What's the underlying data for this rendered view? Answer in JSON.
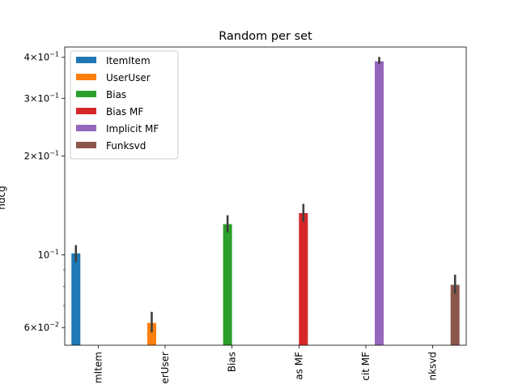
{
  "chart_data": {
    "type": "bar",
    "title": "Random per set",
    "xlabel": "",
    "ylabel": "ndcg",
    "yscale": "log",
    "ylim": [
      0.053,
      0.43
    ],
    "categories": [
      "ItemItem",
      "UserUser",
      "Bias",
      "Bias MF",
      "Implicit MF",
      "Funksvd"
    ],
    "category_labels_shown": [
      "mItem",
      "erUser",
      "Bias",
      "as MF",
      "cit MF",
      "nksvd"
    ],
    "x_tick_rotation": 90,
    "series": [
      {
        "name": "ItemItem",
        "color": "#1f77b4",
        "values": [
          0.101,
          null,
          null,
          null,
          null,
          null
        ],
        "ci_low": [
          0.095,
          null,
          null,
          null,
          null,
          null
        ],
        "ci_high": [
          0.107,
          null,
          null,
          null,
          null,
          null
        ]
      },
      {
        "name": "UserUser",
        "color": "#ff7f0e",
        "values": [
          null,
          0.062,
          null,
          null,
          null,
          null
        ],
        "ci_low": [
          null,
          0.058,
          null,
          null,
          null,
          null
        ],
        "ci_high": [
          null,
          0.067,
          null,
          null,
          null,
          null
        ]
      },
      {
        "name": "Bias",
        "color": "#2ca02c",
        "values": [
          null,
          null,
          0.124,
          null,
          null,
          null
        ],
        "ci_low": [
          null,
          null,
          0.117,
          null,
          null,
          null
        ],
        "ci_high": [
          null,
          null,
          0.132,
          null,
          null,
          null
        ]
      },
      {
        "name": "Bias MF",
        "color": "#d62728",
        "values": [
          null,
          null,
          null,
          0.134,
          null,
          null
        ],
        "ci_low": [
          null,
          null,
          null,
          0.126,
          null,
          null
        ],
        "ci_high": [
          null,
          null,
          null,
          0.143,
          null,
          null
        ]
      },
      {
        "name": "Implicit MF",
        "color": "#9467bd",
        "values": [
          null,
          null,
          null,
          null,
          0.389,
          null
        ],
        "ci_low": [
          null,
          null,
          null,
          null,
          0.381,
          null
        ],
        "ci_high": [
          null,
          null,
          null,
          null,
          0.401,
          null
        ]
      },
      {
        "name": "Funksvd",
        "color": "#8c564b",
        "values": [
          null,
          null,
          null,
          null,
          null,
          0.081
        ],
        "ci_low": [
          null,
          null,
          null,
          null,
          null,
          0.076
        ],
        "ci_high": [
          null,
          null,
          null,
          null,
          null,
          0.087
        ]
      }
    ],
    "y_major_ticks": [
      {
        "value": 0.06,
        "mantissa": "6",
        "exponent": "−2"
      },
      {
        "value": 0.1,
        "mantissa": "",
        "exponent": "−1"
      },
      {
        "value": 0.2,
        "mantissa": "2",
        "exponent": "−1"
      },
      {
        "value": 0.3,
        "mantissa": "3",
        "exponent": "−1"
      },
      {
        "value": 0.4,
        "mantissa": "4",
        "exponent": "−1"
      }
    ],
    "y_minor_ticks": [
      0.07,
      0.08,
      0.09
    ],
    "legend": {
      "position": "top-left"
    },
    "grid": false
  }
}
